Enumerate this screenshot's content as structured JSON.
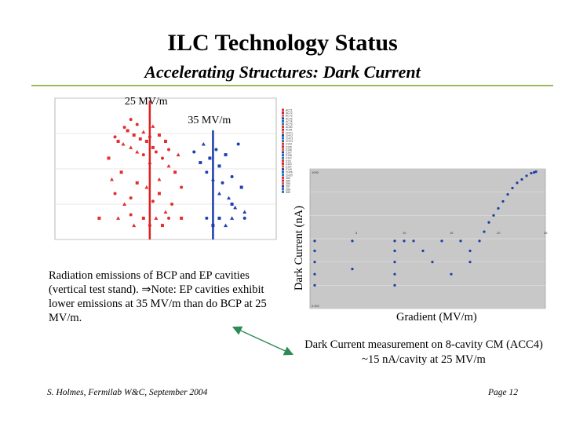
{
  "header": {
    "title": "ILC Technology Status",
    "subtitle": "Accelerating Structures: Dark Current"
  },
  "chart_data": [
    {
      "type": "scatter",
      "title": "",
      "xlabel": "",
      "ylabel": "",
      "yscale": "log",
      "xlim": [
        10,
        45
      ],
      "ylim": [
        0.001,
        10
      ],
      "grid": true,
      "legend_position": "right",
      "annotations": [
        "25 MV/m",
        "35 MV/m"
      ],
      "marker_lines": [
        {
          "x": 25,
          "label": "25 MV/m",
          "color": "#e02020"
        },
        {
          "x": 35,
          "label": "35 MV/m",
          "color": "#1a3ca8"
        }
      ],
      "series": [
        {
          "group": "BCP",
          "color": "#e03030",
          "points": [
            [
              19.5,
              0.8
            ],
            [
              20,
              0.6
            ],
            [
              20.8,
              0.5
            ],
            [
              21,
              1.5
            ],
            [
              21.5,
              1.2
            ],
            [
              22,
              0.4
            ],
            [
              22,
              2.5
            ],
            [
              22.5,
              0.9
            ],
            [
              23,
              0.3
            ],
            [
              23,
              1.8
            ],
            [
              23.5,
              0.7
            ],
            [
              24,
              1.1
            ],
            [
              24,
              0.25
            ],
            [
              24.5,
              0.6
            ],
            [
              25,
              0.15
            ],
            [
              25,
              0.8
            ],
            [
              25.5,
              0.4
            ],
            [
              25.5,
              1.6
            ],
            [
              26,
              0.3
            ],
            [
              26.5,
              0.9
            ],
            [
              26.5,
              0.05
            ],
            [
              27,
              0.2
            ],
            [
              27.5,
              0.6
            ],
            [
              28,
              0.12
            ],
            [
              28,
              0.35
            ],
            [
              29,
              0.08
            ],
            [
              29.5,
              0.25
            ],
            [
              30,
              0.03
            ],
            [
              18.5,
              0.2
            ],
            [
              19,
              0.05
            ],
            [
              19.5,
              0.02
            ],
            [
              20.5,
              0.08
            ],
            [
              21,
              0.01
            ],
            [
              22,
              0.015
            ],
            [
              23,
              0.04
            ],
            [
              24.5,
              0.03
            ],
            [
              25.5,
              0.012
            ],
            [
              26.5,
              0.02
            ],
            [
              27.5,
              0.006
            ],
            [
              28.5,
              0.01
            ],
            [
              17,
              0.004
            ],
            [
              20,
              0.004
            ],
            [
              22,
              0.005
            ],
            [
              24,
              0.004
            ],
            [
              26,
              0.004
            ],
            [
              28,
              0.004
            ],
            [
              30,
              0.004
            ],
            [
              22.5,
              0.0025
            ],
            [
              25,
              0.0025
            ],
            [
              27,
              0.0025
            ]
          ]
        },
        {
          "group": "EP",
          "color": "#2040b0",
          "points": [
            [
              32,
              0.3
            ],
            [
              33,
              0.15
            ],
            [
              33.5,
              0.5
            ],
            [
              34,
              0.08
            ],
            [
              34.5,
              0.2
            ],
            [
              35,
              0.05
            ],
            [
              35.5,
              0.35
            ],
            [
              36,
              0.12
            ],
            [
              36,
              0.02
            ],
            [
              36.5,
              0.04
            ],
            [
              37,
              0.25
            ],
            [
              37.5,
              0.015
            ],
            [
              38,
              0.06
            ],
            [
              38,
              0.01
            ],
            [
              38.5,
              0.008
            ],
            [
              39,
              0.5
            ],
            [
              39.5,
              0.03
            ],
            [
              40,
              0.006
            ],
            [
              34,
              0.004
            ],
            [
              36,
              0.004
            ],
            [
              38,
              0.004
            ],
            [
              40,
              0.004
            ],
            [
              35,
              0.0025
            ],
            [
              37,
              0.0025
            ]
          ]
        }
      ],
      "legend": [
        "AC71",
        "AC72",
        "AC73",
        "AC76",
        "AC78",
        "AC79",
        "AC80",
        "AC81",
        "CHY1",
        "CHY2",
        "CHY3",
        "CHY4",
        "Z104",
        "Z105",
        "Z106",
        "Z107",
        "Z108",
        "Z110",
        "Z111",
        "Z113",
        "Z114",
        "Z143",
        "CH26",
        "CH20",
        "Z84",
        "Z85",
        "Z86",
        "Z87",
        "Z88",
        "Z89"
      ]
    },
    {
      "type": "scatter",
      "title": "",
      "xlabel": "Gradient (MV/m)",
      "ylabel": "Dark Current (nA)",
      "yscale": "log",
      "xlim": [
        0,
        25
      ],
      "ylim": [
        0.001,
        1000
      ],
      "ytick_labels": [
        "1000",
        "0.001"
      ],
      "xtick_labels": [
        "5",
        "10",
        "15",
        "20",
        "25"
      ],
      "grid": true,
      "background": "#c8c8c8",
      "series": [
        {
          "name": "",
          "color": "#1a3ca8",
          "points": [
            [
              0.5,
              0.8
            ],
            [
              0.5,
              0.3
            ],
            [
              0.5,
              0.1
            ],
            [
              0.5,
              0.03
            ],
            [
              0.5,
              0.01
            ],
            [
              4.5,
              0.8
            ],
            [
              4.5,
              0.05
            ],
            [
              9,
              0.8
            ],
            [
              9,
              0.3
            ],
            [
              9,
              0.1
            ],
            [
              9,
              0.03
            ],
            [
              9,
              0.01
            ],
            [
              10,
              0.8
            ],
            [
              11,
              0.8
            ],
            [
              12,
              0.3
            ],
            [
              13,
              0.1
            ],
            [
              14,
              0.8
            ],
            [
              15,
              0.03
            ],
            [
              16,
              0.8
            ],
            [
              17,
              0.3
            ],
            [
              17,
              0.1
            ],
            [
              18,
              0.8
            ],
            [
              18.5,
              2
            ],
            [
              19,
              5
            ],
            [
              19.5,
              10
            ],
            [
              20,
              20
            ],
            [
              20.5,
              40
            ],
            [
              21,
              80
            ],
            [
              21.5,
              150
            ],
            [
              22,
              250
            ],
            [
              22.5,
              350
            ],
            [
              23,
              500
            ],
            [
              23.5,
              650
            ],
            [
              23.8,
              700
            ],
            [
              24,
              750
            ]
          ]
        }
      ]
    }
  ],
  "captions": {
    "left_1": "Radiation emissions of BCP and EP cavities (vertical test stand). ",
    "left_arrow": "⇒",
    "left_2": "Note: EP cavities exhibit lower emissions at 35 MV/m than do BCP at 25 MV/m",
    "left_3": ".",
    "right_1": "Dark Current measurement on 8-cavity CM (ACC4)",
    "right_2": "~15 nA/cavity at 25 MV/m"
  },
  "footer": {
    "left": "S. Holmes, Fermilab W&C, September 2004",
    "right": "Page  12"
  },
  "colors": {
    "accent_rule": "#9bbb59",
    "bcp": "#e03030",
    "ep": "#2040b0",
    "arrow": "#2e8b57"
  }
}
